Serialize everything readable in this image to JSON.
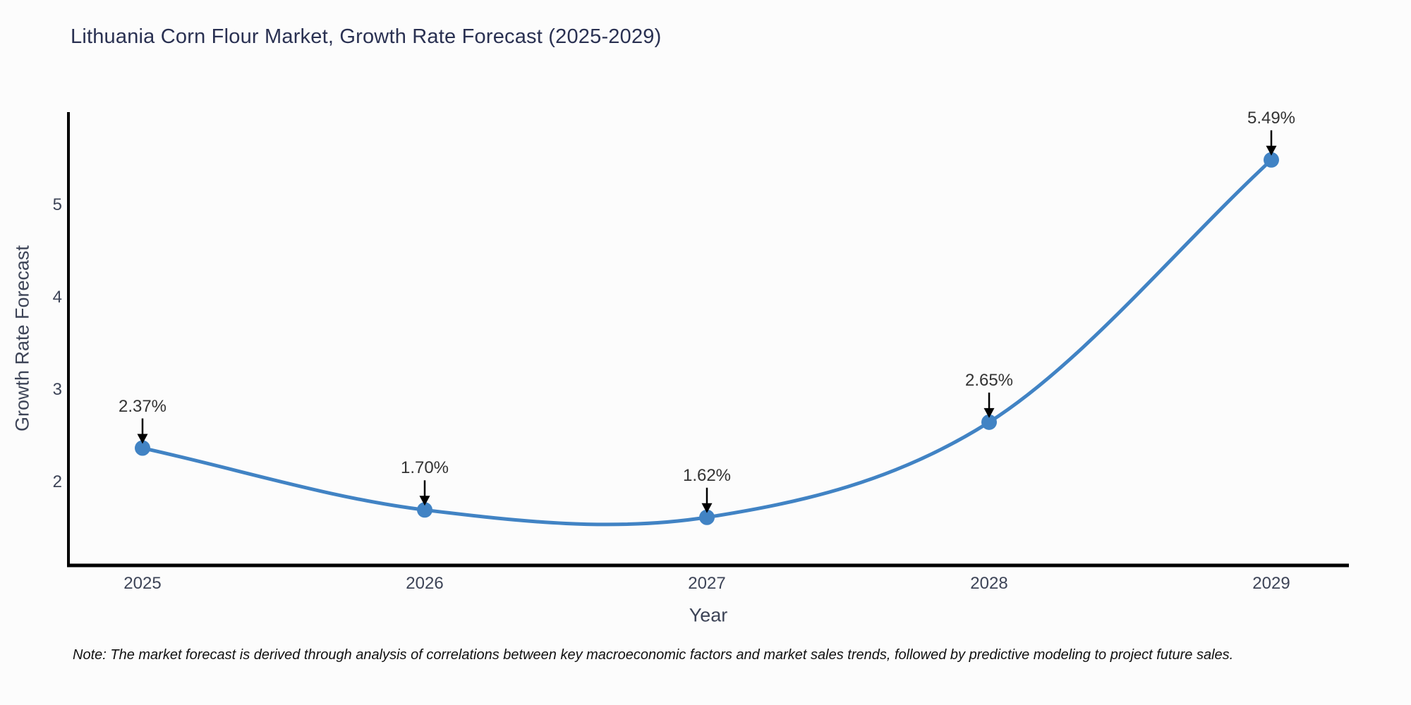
{
  "chart_data": {
    "type": "line",
    "title": "Lithuania Corn Flour Market, Growth Rate Forecast (2025-2029)",
    "x": [
      2025,
      2026,
      2027,
      2028,
      2029
    ],
    "values": [
      2.37,
      1.7,
      1.62,
      2.65,
      5.49
    ],
    "point_labels": [
      "2.37%",
      "1.70%",
      "1.62%",
      "2.65%",
      "5.49%"
    ],
    "xtick_labels": [
      "2025",
      "2026",
      "2027",
      "2028",
      "2029"
    ],
    "yticks": [
      2,
      3,
      4,
      5
    ],
    "xlabel": "Year",
    "ylabel": "Growth Rate Forecast",
    "xlim": [
      2024.74,
      2029.28
    ],
    "ylim": [
      1.1,
      6.0
    ],
    "grid": false,
    "legend": "none",
    "note": "Note: The market forecast is derived through analysis of correlations between key macroeconomic factors and market sales trends, followed by predictive modeling to project future sales.",
    "colors": {
      "line": "#4183c4",
      "marker": "#4183c4",
      "annotation_text": "#333333",
      "annotation_arrow": "#000000",
      "spine": "#000000",
      "title_text": "#2a3152",
      "axis_text": "#3d4457"
    }
  }
}
